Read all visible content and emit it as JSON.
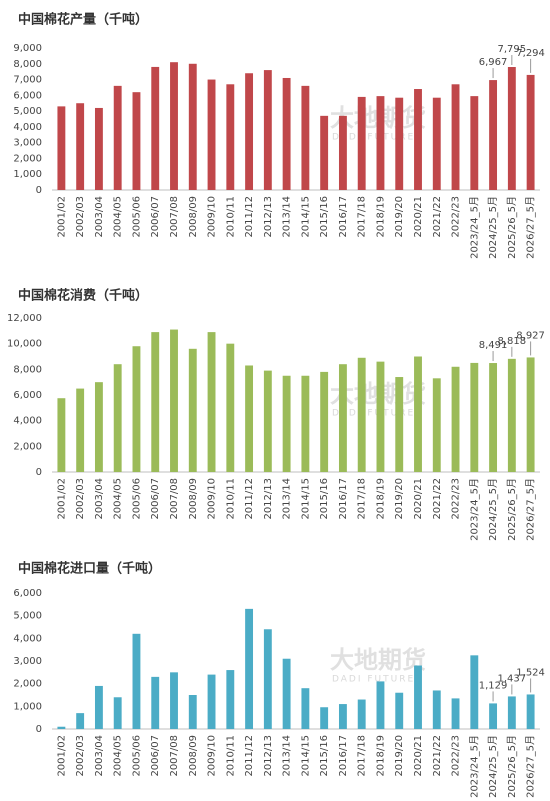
{
  "chart_data": [
    {
      "type": "bar",
      "title": "中国棉花产量（千吨）",
      "color": "#c0474a",
      "watermark": "大地期货",
      "watermark_sub": "DADI FUTURES",
      "categories": [
        "2001/02",
        "2002/03",
        "2003/04",
        "2004/05",
        "2005/06",
        "2006/07",
        "2007/08",
        "2008/09",
        "2009/10",
        "2010/11",
        "2011/12",
        "2012/13",
        "2013/14",
        "2014/15",
        "2015/16",
        "2016/17",
        "2017/18",
        "2018/19",
        "2019/20",
        "2020/21",
        "2021/22",
        "2022/23",
        "2023/24_5月",
        "2024/25_5月",
        "2025/26_5月",
        "2026/27_5月"
      ],
      "values": [
        5300,
        5500,
        5200,
        6600,
        6200,
        7800,
        8100,
        8000,
        7000,
        6700,
        7400,
        7600,
        7100,
        6600,
        4700,
        4700,
        5900,
        5950,
        5850,
        6400,
        5850,
        6700,
        5950,
        6967,
        7795,
        7294
      ],
      "value_labels": [
        null,
        null,
        null,
        null,
        null,
        null,
        null,
        null,
        null,
        null,
        null,
        null,
        null,
        null,
        null,
        null,
        null,
        null,
        null,
        null,
        null,
        null,
        null,
        "6,967",
        "7,795",
        "7,294"
      ],
      "ylim": [
        0,
        9000
      ],
      "yticks": [
        0,
        {
          "value": 1000,
          "label": "1,000"
        },
        {
          "value": 2000,
          "label": "2,000"
        },
        {
          "value": 3000,
          "label": "3,000"
        },
        {
          "value": 4000,
          "label": "4,000"
        },
        {
          "value": 5000,
          "label": "5,000"
        },
        {
          "value": 6000,
          "label": "6,000"
        },
        {
          "value": 7000,
          "label": "7,000"
        },
        {
          "value": 8000,
          "label": "8,000"
        },
        {
          "value": 9000,
          "label": "9,000"
        }
      ]
    },
    {
      "type": "bar",
      "title": "中国棉花消费（千吨）",
      "color": "#9bbb59",
      "watermark": "大地期货",
      "watermark_sub": "DADI FUTURES",
      "categories": [
        "2001/02",
        "2002/03",
        "2003/04",
        "2004/05",
        "2005/06",
        "2006/07",
        "2007/08",
        "2008/09",
        "2009/10",
        "2010/11",
        "2011/12",
        "2012/13",
        "2013/14",
        "2014/15",
        "2015/16",
        "2016/17",
        "2017/18",
        "2018/19",
        "2019/20",
        "2020/21",
        "2021/22",
        "2022/23",
        "2023/24_5月",
        "2024/25_5月",
        "2025/26_5月",
        "2026/27_5月"
      ],
      "values": [
        5750,
        6500,
        7000,
        8400,
        9800,
        10900,
        11100,
        9600,
        10900,
        10000,
        8300,
        7900,
        7500,
        7500,
        7800,
        8400,
        8900,
        8600,
        7400,
        9000,
        7300,
        8200,
        8500,
        8491,
        8818,
        8927
      ],
      "value_labels": [
        null,
        null,
        null,
        null,
        null,
        null,
        null,
        null,
        null,
        null,
        null,
        null,
        null,
        null,
        null,
        null,
        null,
        null,
        null,
        null,
        null,
        null,
        null,
        "8,491",
        "8,818",
        "8,927"
      ],
      "ylim": [
        0,
        12000
      ],
      "yticks": [
        0,
        {
          "value": 2000,
          "label": "2,000"
        },
        {
          "value": 4000,
          "label": "4,000"
        },
        {
          "value": 6000,
          "label": "6,000"
        },
        {
          "value": 8000,
          "label": "8,000"
        },
        {
          "value": 10000,
          "label": "10,000"
        },
        {
          "value": 12000,
          "label": "12,000"
        }
      ]
    },
    {
      "type": "bar",
      "title": "中国棉花进口量（千吨）",
      "color": "#4bacc6",
      "watermark": "大地期货",
      "watermark_sub": "DADI FUTURES",
      "categories": [
        "2001/02",
        "2002/03",
        "2003/04",
        "2004/05",
        "2005/06",
        "2006/07",
        "2007/08",
        "2008/09",
        "2009/10",
        "2010/11",
        "2011/12",
        "2012/13",
        "2013/14",
        "2014/15",
        "2015/16",
        "2016/17",
        "2017/18",
        "2018/19",
        "2019/20",
        "2020/21",
        "2021/22",
        "2022/23",
        "2023/24_5月",
        "2024/25_5月",
        "2025/26_5月",
        "2026/27_5月"
      ],
      "values": [
        100,
        700,
        1900,
        1400,
        4200,
        2300,
        2500,
        1500,
        2400,
        2600,
        5300,
        4400,
        3100,
        1800,
        960,
        1100,
        1300,
        2100,
        1600,
        2800,
        1700,
        1350,
        3250,
        1129,
        1437,
        1524
      ],
      "value_labels": [
        null,
        null,
        null,
        null,
        null,
        null,
        null,
        null,
        null,
        null,
        null,
        null,
        null,
        null,
        null,
        null,
        null,
        null,
        null,
        null,
        null,
        null,
        null,
        "1,129",
        "1,437",
        "1,524"
      ],
      "ylim": [
        0,
        6000
      ],
      "yticks": [
        0,
        {
          "value": 1000,
          "label": "1,000"
        },
        {
          "value": 2000,
          "label": "2,000"
        },
        {
          "value": 3000,
          "label": "3,000"
        },
        {
          "value": 4000,
          "label": "4,000"
        },
        {
          "value": 5000,
          "label": "5,000"
        },
        {
          "value": 6000,
          "label": "6,000"
        }
      ]
    }
  ]
}
